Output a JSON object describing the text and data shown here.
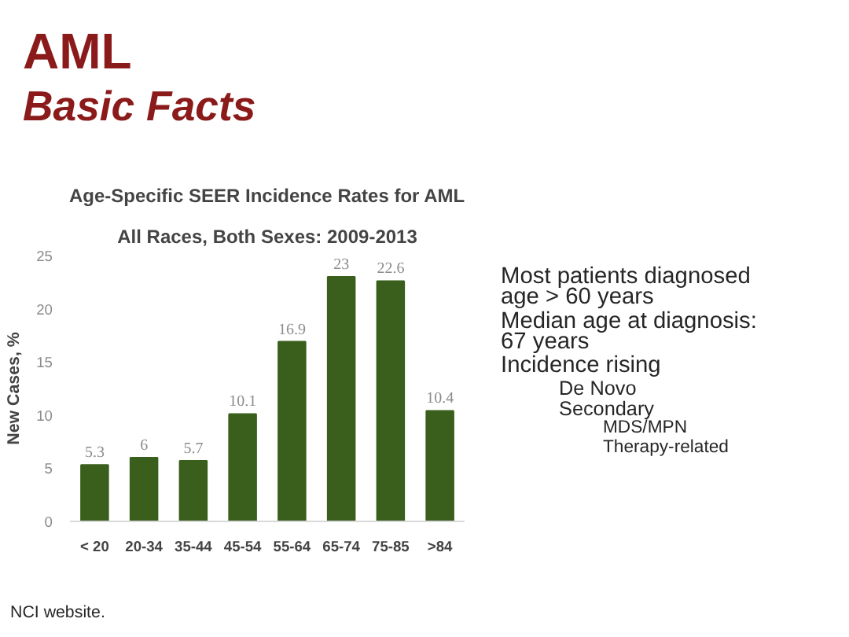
{
  "chart_data": {
    "type": "bar",
    "title": "Age-Specific SEER Incidence Rates for AML",
    "subtitle": "All Races, Both Sexes: 2009-2013",
    "ylabel": "New Cases, %",
    "categories": [
      "< 20",
      "20-34",
      "35-44",
      "45-54",
      "55-64",
      "65-74",
      "75-85",
      ">84"
    ],
    "values": [
      5.3,
      6,
      5.7,
      10.1,
      16.9,
      23,
      22.6,
      10.4
    ],
    "color": "#3a5e1c",
    "data_labels": true,
    "ylim": [
      0,
      25
    ],
    "yticks": [
      0,
      5,
      10,
      15,
      20,
      25
    ],
    "grid": false,
    "annotations": [
      "AML",
      "Basic Facts",
      "Most patients diagnosed age > 60 years",
      "Median age at diagnosis: 67 years",
      "Incidence rising",
      "De Novo",
      "Secondary",
      "MDS/MPN",
      "Therapy-related",
      "NCI website."
    ]
  }
}
